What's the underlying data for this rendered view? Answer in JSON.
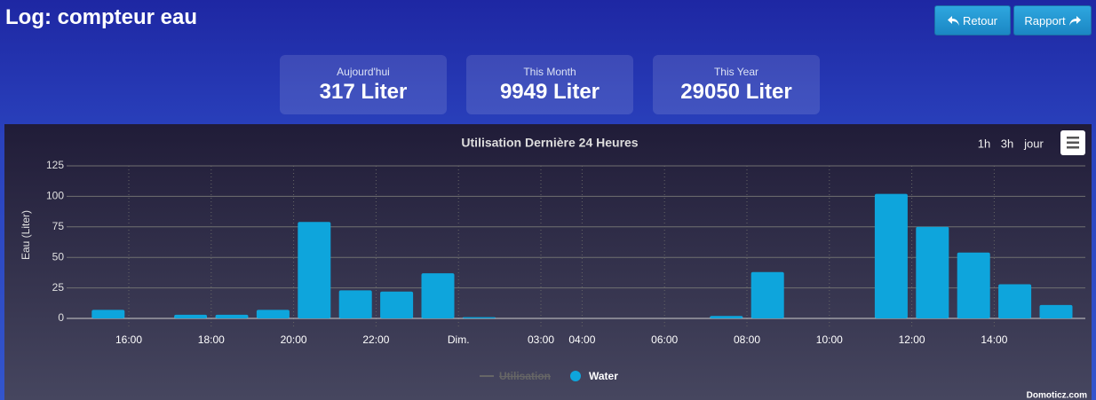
{
  "header": {
    "title": "Log: compteur eau",
    "buttons": [
      "Retour",
      "Rapport"
    ]
  },
  "stats": [
    {
      "label": "Aujourd'hui",
      "value": "317 Liter"
    },
    {
      "label": "This Month",
      "value": "9949 Liter"
    },
    {
      "label": "This Year",
      "value": "29050 Liter"
    }
  ],
  "chart_data": {
    "type": "bar",
    "title": "Utilisation Dernière 24 Heures",
    "zoom_buttons": [
      "1h",
      "3h",
      "jour"
    ],
    "y_label": "Eau (Liter)",
    "categories": [
      null,
      "16:00",
      null,
      "18:00",
      null,
      "20:00",
      null,
      "22:00",
      null,
      "Dim.",
      null,
      "03:00",
      "04:00",
      null,
      "06:00",
      null,
      "08:00",
      null,
      "10:00",
      null,
      "12:00",
      null,
      "14:00",
      null
    ],
    "series": [
      {
        "name": "Water",
        "color": "#0ea5dc",
        "values": [
          7,
          null,
          3,
          3,
          7,
          79,
          23,
          22,
          37,
          1,
          null,
          null,
          null,
          null,
          null,
          2,
          38,
          null,
          null,
          102,
          75,
          54,
          28,
          11
        ]
      }
    ],
    "hidden_series": [
      {
        "name": "Utilisation",
        "color": "#666666"
      }
    ],
    "ylim": [
      0,
      125
    ],
    "yticks": [
      0,
      25,
      50,
      75,
      100,
      125
    ],
    "grid": true,
    "credits": "Domoticz.com"
  }
}
